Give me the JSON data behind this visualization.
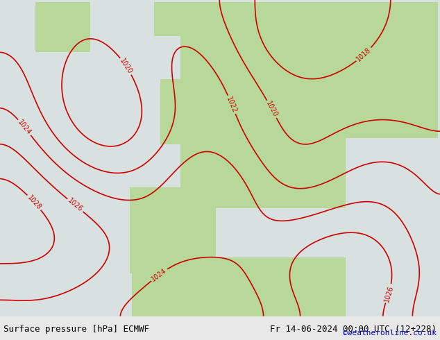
{
  "title": "Surface pressure [hPa] ECMWF",
  "date_label": "Fr 14-06-2024 00:00 UTC (12+228)",
  "watermark": "©weatheronline.co.uk",
  "bg_land": "#c8e6a0",
  "bg_sea": "#e8e8e8",
  "bg_white": "#f0f0f0",
  "land_color": "#b8d880",
  "mountain_color": "#a0a0a0",
  "isobar_colors": {
    "below_1013": "#0000cc",
    "at_1013": "#000000",
    "above_1013": "#cc0000"
  },
  "footer_bg": "#e0e0e0",
  "footer_text_color": "#000000",
  "watermark_color": "#0000cc",
  "figsize": [
    6.34,
    4.9
  ],
  "dpi": 100
}
